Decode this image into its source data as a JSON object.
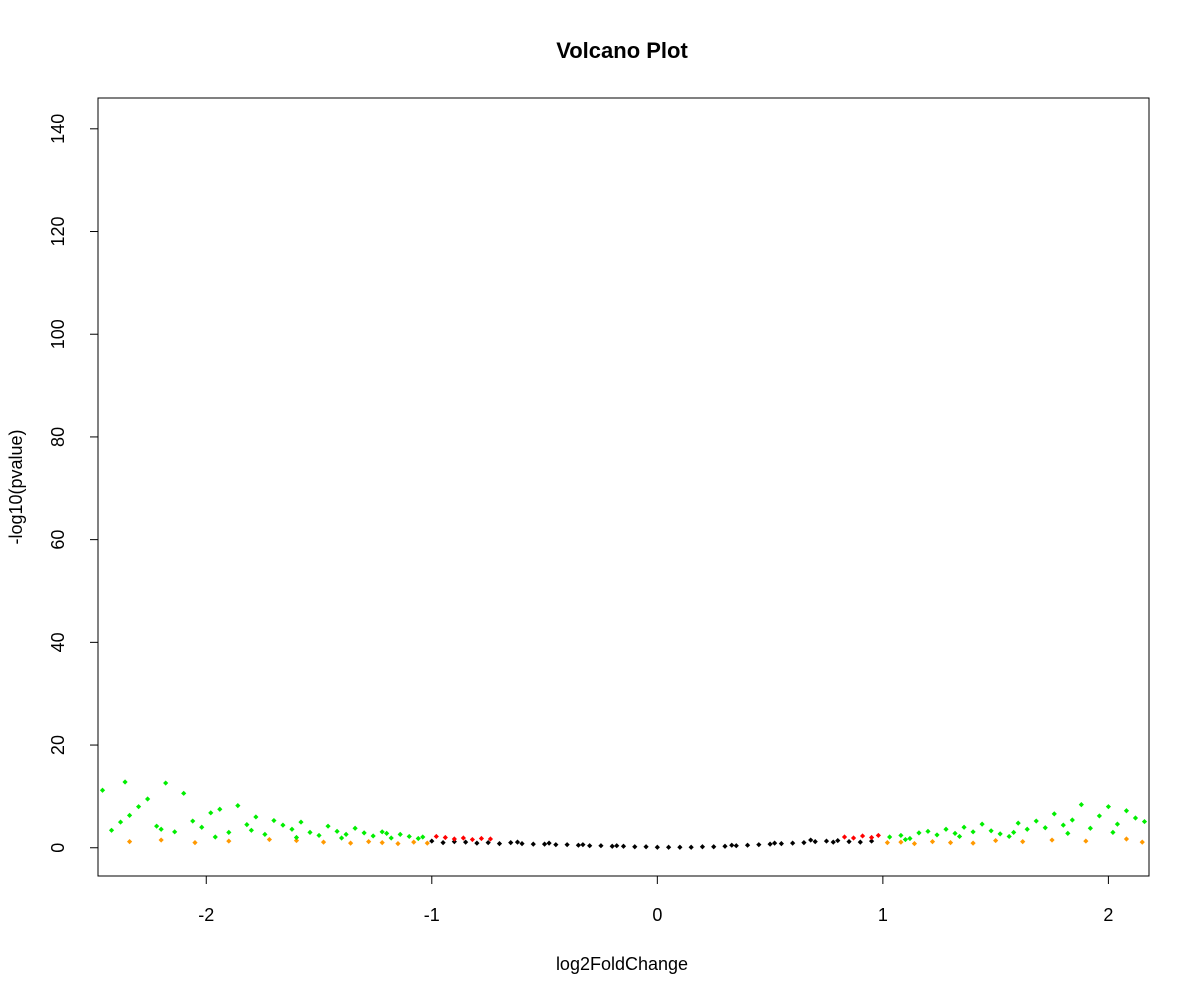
{
  "chart_data": {
    "type": "scatter",
    "title": "Volcano Plot",
    "xlabel": "log2FoldChange",
    "ylabel": "-log10(pvalue)",
    "xlim": [
      -2.48,
      2.18
    ],
    "ylim": [
      -5.5,
      146
    ],
    "x_ticks": [
      -2,
      -1,
      0,
      1,
      2
    ],
    "y_ticks": [
      0,
      20,
      40,
      60,
      80,
      100,
      120,
      140
    ],
    "grid": false,
    "legend": "none",
    "colors": {
      "not_significant": "#000000",
      "pvalue_only": "#ff0000",
      "foldchange_only": "#ff9900",
      "significant": "#00ee00"
    },
    "series": [
      {
        "color_key": "not_significant",
        "points": [
          [
            -1.0,
            1.3
          ],
          [
            -0.95,
            1.0
          ],
          [
            -0.9,
            1.2
          ],
          [
            -0.85,
            1.1
          ],
          [
            -0.8,
            0.9
          ],
          [
            -0.75,
            1.0
          ],
          [
            -0.7,
            0.8
          ],
          [
            -0.65,
            1.0
          ],
          [
            -0.6,
            0.8
          ],
          [
            -0.55,
            0.7
          ],
          [
            -0.5,
            0.7
          ],
          [
            -0.45,
            0.6
          ],
          [
            -0.4,
            0.6
          ],
          [
            -0.35,
            0.5
          ],
          [
            -0.3,
            0.4
          ],
          [
            -0.25,
            0.4
          ],
          [
            -0.2,
            0.3
          ],
          [
            -0.15,
            0.3
          ],
          [
            -0.1,
            0.2
          ],
          [
            -0.05,
            0.2
          ],
          [
            0.0,
            0.1
          ],
          [
            0.05,
            0.1
          ],
          [
            0.1,
            0.1
          ],
          [
            0.15,
            0.1
          ],
          [
            0.2,
            0.2
          ],
          [
            0.25,
            0.2
          ],
          [
            0.3,
            0.3
          ],
          [
            0.35,
            0.4
          ],
          [
            0.4,
            0.5
          ],
          [
            0.45,
            0.6
          ],
          [
            0.5,
            0.7
          ],
          [
            0.55,
            0.8
          ],
          [
            0.6,
            0.9
          ],
          [
            0.65,
            1.0
          ],
          [
            0.7,
            1.2
          ],
          [
            0.75,
            1.3
          ],
          [
            0.8,
            1.4
          ],
          [
            0.85,
            1.2
          ],
          [
            0.9,
            1.1
          ],
          [
            0.95,
            1.3
          ],
          [
            -0.62,
            1.1
          ],
          [
            -0.48,
            0.9
          ],
          [
            -0.33,
            0.6
          ],
          [
            -0.18,
            0.4
          ],
          [
            0.33,
            0.5
          ],
          [
            0.52,
            0.9
          ],
          [
            0.68,
            1.5
          ],
          [
            0.78,
            1.1
          ]
        ]
      },
      {
        "color_key": "pvalue_only",
        "points": [
          [
            -0.98,
            2.2
          ],
          [
            -0.94,
            2.0
          ],
          [
            -0.9,
            1.7
          ],
          [
            -0.86,
            1.9
          ],
          [
            -0.82,
            1.6
          ],
          [
            -0.78,
            1.8
          ],
          [
            -0.74,
            1.7
          ],
          [
            0.83,
            2.1
          ],
          [
            0.87,
            1.9
          ],
          [
            0.91,
            2.3
          ],
          [
            0.95,
            2.0
          ],
          [
            0.98,
            2.4
          ]
        ]
      },
      {
        "color_key": "foldchange_only",
        "points": [
          [
            -2.34,
            1.2
          ],
          [
            -2.2,
            1.5
          ],
          [
            -2.05,
            1.0
          ],
          [
            -1.9,
            1.3
          ],
          [
            -1.72,
            1.6
          ],
          [
            -1.6,
            1.4
          ],
          [
            -1.48,
            1.1
          ],
          [
            -1.36,
            0.9
          ],
          [
            -1.28,
            1.2
          ],
          [
            -1.22,
            1.0
          ],
          [
            -1.15,
            0.8
          ],
          [
            -1.08,
            1.1
          ],
          [
            -1.02,
            0.9
          ],
          [
            1.02,
            1.0
          ],
          [
            1.08,
            1.1
          ],
          [
            1.14,
            0.8
          ],
          [
            1.22,
            1.2
          ],
          [
            1.3,
            1.0
          ],
          [
            1.4,
            0.9
          ],
          [
            1.5,
            1.4
          ],
          [
            1.62,
            1.2
          ],
          [
            1.75,
            1.5
          ],
          [
            1.9,
            1.3
          ],
          [
            2.08,
            1.7
          ],
          [
            2.15,
            1.1
          ]
        ]
      },
      {
        "color_key": "significant",
        "points": [
          [
            -2.46,
            11.2
          ],
          [
            -2.42,
            3.4
          ],
          [
            -2.38,
            5.0
          ],
          [
            -2.34,
            6.3
          ],
          [
            -2.3,
            8.0
          ],
          [
            -2.26,
            9.5
          ],
          [
            -2.22,
            4.2
          ],
          [
            -2.18,
            12.6
          ],
          [
            -2.14,
            3.1
          ],
          [
            -2.1,
            10.6
          ],
          [
            -2.06,
            5.2
          ],
          [
            -2.02,
            4.0
          ],
          [
            -1.98,
            6.8
          ],
          [
            -1.94,
            7.5
          ],
          [
            -1.9,
            3.0
          ],
          [
            -1.86,
            8.2
          ],
          [
            -1.82,
            4.5
          ],
          [
            -1.78,
            6.0
          ],
          [
            -1.74,
            2.6
          ],
          [
            -1.7,
            5.3
          ],
          [
            -1.66,
            4.4
          ],
          [
            -1.62,
            3.6
          ],
          [
            -1.58,
            5.0
          ],
          [
            -1.54,
            3.0
          ],
          [
            -1.5,
            2.4
          ],
          [
            -1.46,
            4.2
          ],
          [
            -1.42,
            3.2
          ],
          [
            -1.38,
            2.6
          ],
          [
            -1.34,
            3.8
          ],
          [
            -1.3,
            2.9
          ],
          [
            -1.26,
            2.3
          ],
          [
            -1.22,
            3.1
          ],
          [
            -1.18,
            1.9
          ],
          [
            -1.14,
            2.6
          ],
          [
            -1.1,
            2.2
          ],
          [
            -1.06,
            1.8
          ],
          [
            -2.36,
            12.8
          ],
          [
            -2.2,
            3.6
          ],
          [
            -1.96,
            2.1
          ],
          [
            -1.8,
            3.4
          ],
          [
            -1.6,
            2.0
          ],
          [
            -1.4,
            1.9
          ],
          [
            -1.2,
            2.8
          ],
          [
            -1.04,
            2.1
          ],
          [
            1.03,
            2.1
          ],
          [
            1.08,
            2.4
          ],
          [
            1.12,
            1.8
          ],
          [
            1.16,
            2.9
          ],
          [
            1.2,
            3.2
          ],
          [
            1.24,
            2.5
          ],
          [
            1.28,
            3.6
          ],
          [
            1.32,
            2.8
          ],
          [
            1.36,
            4.0
          ],
          [
            1.4,
            3.1
          ],
          [
            1.44,
            4.6
          ],
          [
            1.48,
            3.3
          ],
          [
            1.52,
            2.7
          ],
          [
            1.56,
            2.2
          ],
          [
            1.6,
            4.8
          ],
          [
            1.64,
            3.6
          ],
          [
            1.68,
            5.2
          ],
          [
            1.72,
            3.9
          ],
          [
            1.76,
            6.6
          ],
          [
            1.8,
            4.4
          ],
          [
            1.84,
            5.4
          ],
          [
            1.88,
            8.4
          ],
          [
            1.92,
            3.8
          ],
          [
            1.96,
            6.2
          ],
          [
            2.0,
            8.0
          ],
          [
            2.04,
            4.6
          ],
          [
            2.08,
            7.2
          ],
          [
            2.12,
            5.8
          ],
          [
            2.16,
            5.1
          ],
          [
            1.1,
            1.6
          ],
          [
            1.34,
            2.2
          ],
          [
            1.58,
            3.0
          ],
          [
            1.82,
            2.8
          ],
          [
            2.02,
            3.0
          ]
        ]
      }
    ]
  }
}
